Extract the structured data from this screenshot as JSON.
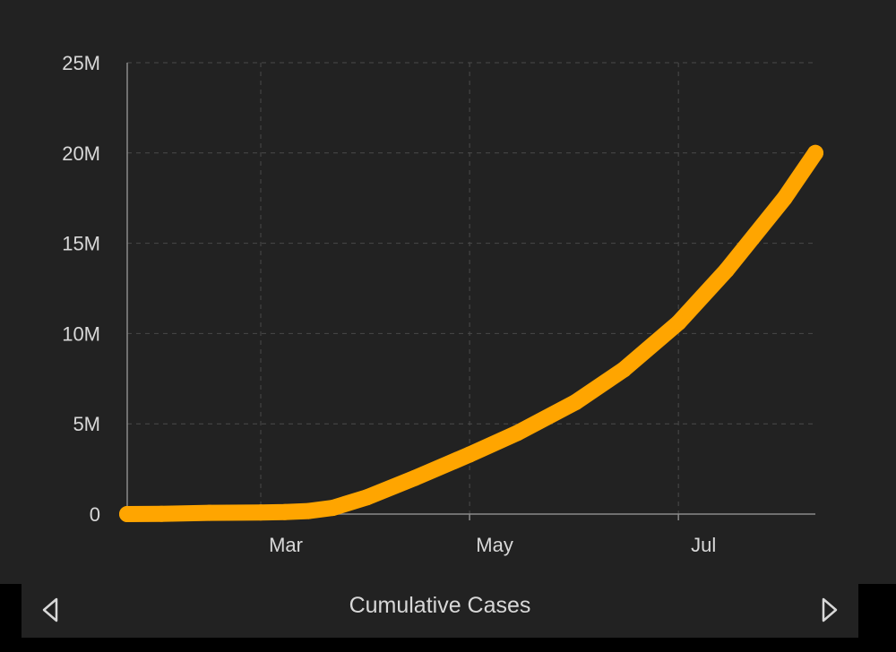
{
  "chart_data": {
    "type": "line",
    "title": "",
    "xlabel": "",
    "ylabel": "",
    "x_ticks": [
      "Mar",
      "May",
      "Jul"
    ],
    "x_tick_dates": [
      "2020-03-01",
      "2020-05-01",
      "2020-07-01"
    ],
    "y_ticks": [
      {
        "value": 0,
        "label": "0"
      },
      {
        "value": 5000000,
        "label": "5M"
      },
      {
        "value": 10000000,
        "label": "10M"
      },
      {
        "value": 15000000,
        "label": "15M"
      },
      {
        "value": 20000000,
        "label": "20M"
      },
      {
        "value": 25000000,
        "label": "25M"
      }
    ],
    "xlim": [
      "2020-01-22",
      "2020-08-10"
    ],
    "ylim": [
      0,
      25000000
    ],
    "grid": true,
    "series": [
      {
        "color": "#ffa500",
        "points": [
          [
            "2020-01-22",
            0
          ],
          [
            "2020-02-01",
            12000
          ],
          [
            "2020-02-15",
            69000
          ],
          [
            "2020-03-01",
            88000
          ],
          [
            "2020-03-08",
            110000
          ],
          [
            "2020-03-15",
            170000
          ],
          [
            "2020-03-22",
            340000
          ],
          [
            "2020-04-01",
            930000
          ],
          [
            "2020-04-15",
            2000000
          ],
          [
            "2020-05-01",
            3300000
          ],
          [
            "2020-05-15",
            4500000
          ],
          [
            "2020-06-01",
            6200000
          ],
          [
            "2020-06-15",
            8000000
          ],
          [
            "2020-07-01",
            10600000
          ],
          [
            "2020-07-15",
            13500000
          ],
          [
            "2020-08-01",
            17500000
          ],
          [
            "2020-08-10",
            20000000
          ]
        ]
      }
    ]
  },
  "footer": {
    "title": "Cumulative Cases",
    "prev_icon": "triangle-left-icon",
    "next_icon": "triangle-right-icon"
  },
  "colors": {
    "background": "#222222",
    "line": "#ffa500",
    "text": "#d8d8d8"
  }
}
